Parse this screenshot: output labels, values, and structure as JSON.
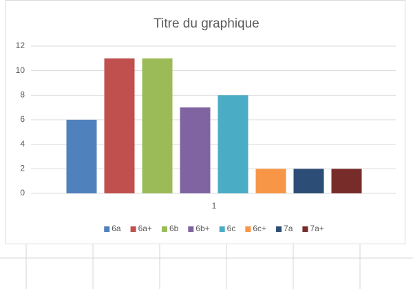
{
  "chart_data": {
    "type": "bar",
    "title": "Titre du graphique",
    "categories": [
      "1"
    ],
    "series": [
      {
        "name": "6a",
        "color": "#4f81bd",
        "values": [
          6
        ]
      },
      {
        "name": "6a+",
        "color": "#c0504d",
        "values": [
          11
        ]
      },
      {
        "name": "6b",
        "color": "#9bbb59",
        "values": [
          11
        ]
      },
      {
        "name": "6b+",
        "color": "#8064a2",
        "values": [
          7
        ]
      },
      {
        "name": "6c",
        "color": "#4bacc6",
        "values": [
          8
        ]
      },
      {
        "name": "6c+",
        "color": "#f79646",
        "values": [
          2
        ]
      },
      {
        "name": "7a",
        "color": "#2c4d75",
        "values": [
          2
        ]
      },
      {
        "name": "7a+",
        "color": "#772c2a",
        "values": [
          2
        ]
      }
    ],
    "ylim": [
      0,
      12
    ],
    "yticks": [
      0,
      2,
      4,
      6,
      8,
      10,
      12
    ],
    "grid": true,
    "legend": "bottom"
  }
}
